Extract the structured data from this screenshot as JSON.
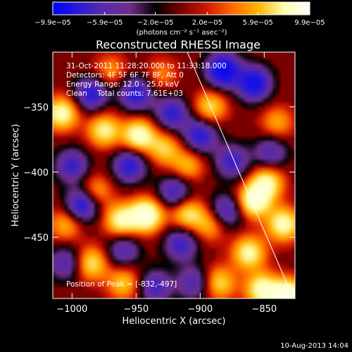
{
  "chart_data": {
    "type": "heatmap",
    "title": "Reconstructed RHESSI Image",
    "xlabel": "Heliocentric X (arcsec)",
    "ylabel": "Heliocentric Y (arcsec)",
    "xlim": [
      -1015,
      -826
    ],
    "ylim": [
      -497,
      -308
    ],
    "x_ticks": [
      -1000,
      -950,
      -900,
      -850
    ],
    "x_tick_labels": [
      "−1000",
      "−950",
      "−900",
      "−850"
    ],
    "y_ticks": [
      -350,
      -400,
      -450
    ],
    "y_tick_labels": [
      "−350",
      "−400",
      "−450"
    ],
    "colorbar": {
      "min": -9.9e-05,
      "max": 9.9e-05,
      "tick_labels": [
        "−9.9e−05",
        "−5.9e−05",
        "−2.0e−05",
        "2.0e−05",
        "5.9e−05",
        "9.9e−05"
      ],
      "tick_values": [
        -9.9e-05,
        -5.9e-05,
        -2e-05,
        2e-05,
        5.9e-05,
        9.9e-05
      ],
      "units_label": "(photons cm⁻² s⁻¹ asec⁻²)",
      "stops": [
        "#0000ff",
        "#2b1ad8",
        "#5a2ba8",
        "#6e2f8a",
        "#000000",
        "#7a0000",
        "#d01800",
        "#ff6a00",
        "#ffb400",
        "#ffffb0",
        "#ffffff"
      ]
    },
    "annotation": {
      "time_range": "31-Oct-2011 11:28:20.000 to 11:33:18.000",
      "detectors": "Detectors: 4F 5F 6F 7F 8F, Att 0",
      "energy_range": "Energy Range: 12.0 - 25.0 keV",
      "method": "Clean",
      "total_counts": "Total counts: 7.61E+03",
      "peak": "Position of Peak = [-832,-497]"
    },
    "peak_position": [
      -832,
      -497
    ],
    "limb_line": [
      [
        -910,
        -308
      ],
      [
        -829,
        -493
      ]
    ],
    "sources": [
      {
        "x": -882,
        "y": -322,
        "amp": -1.0
      },
      {
        "x": -858,
        "y": -332,
        "amp": -0.9
      },
      {
        "x": -992,
        "y": -425,
        "amp": -0.8
      },
      {
        "x": -985,
        "y": -340,
        "amp": -0.7
      },
      {
        "x": -950,
        "y": -340,
        "amp": -0.7
      },
      {
        "x": -922,
        "y": -355,
        "amp": -0.65
      },
      {
        "x": -900,
        "y": -372,
        "amp": -0.7
      },
      {
        "x": -955,
        "y": -395,
        "amp": -0.7
      },
      {
        "x": -920,
        "y": -415,
        "amp": -0.6
      },
      {
        "x": -875,
        "y": -392,
        "amp": -0.6
      },
      {
        "x": -1005,
        "y": -470,
        "amp": -0.5
      },
      {
        "x": -960,
        "y": -460,
        "amp": -0.5
      },
      {
        "x": -915,
        "y": -455,
        "amp": -0.6
      },
      {
        "x": -905,
        "y": -485,
        "amp": -0.5
      },
      {
        "x": -880,
        "y": -430,
        "amp": -0.6
      },
      {
        "x": -845,
        "y": -385,
        "amp": -0.5
      },
      {
        "x": -1000,
        "y": -395,
        "amp": -0.6
      },
      {
        "x": -935,
        "y": -488,
        "amp": -0.55
      },
      {
        "x": -1008,
        "y": -355,
        "amp": 0.75
      },
      {
        "x": -975,
        "y": -368,
        "amp": 0.65
      },
      {
        "x": -948,
        "y": -372,
        "amp": 0.8
      },
      {
        "x": -928,
        "y": -382,
        "amp": 0.5
      },
      {
        "x": -942,
        "y": -433,
        "amp": 0.95
      },
      {
        "x": -962,
        "y": -437,
        "amp": 0.7
      },
      {
        "x": -982,
        "y": -415,
        "amp": 0.45
      },
      {
        "x": -910,
        "y": -432,
        "amp": 0.6
      },
      {
        "x": -892,
        "y": -440,
        "amp": 0.45
      },
      {
        "x": -858,
        "y": -422,
        "amp": 0.85
      },
      {
        "x": -848,
        "y": -408,
        "amp": 0.7
      },
      {
        "x": -835,
        "y": -440,
        "amp": 0.75
      },
      {
        "x": -862,
        "y": -462,
        "amp": 0.7
      },
      {
        "x": -832,
        "y": -495,
        "amp": 1.0
      },
      {
        "x": -852,
        "y": -490,
        "amp": 0.75
      },
      {
        "x": -885,
        "y": -485,
        "amp": 0.55
      },
      {
        "x": -985,
        "y": -470,
        "amp": 0.6
      },
      {
        "x": -1005,
        "y": -440,
        "amp": 0.45
      },
      {
        "x": -960,
        "y": -485,
        "amp": 0.5
      },
      {
        "x": -910,
        "y": -395,
        "amp": 0.45
      },
      {
        "x": -892,
        "y": -350,
        "amp": 0.55
      },
      {
        "x": -840,
        "y": -362,
        "amp": 0.4
      },
      {
        "x": -930,
        "y": -325,
        "amp": 0.3
      },
      {
        "x": -970,
        "y": -322,
        "amp": 0.35
      }
    ]
  },
  "footer": {
    "date": "10-Aug-2013 14:04"
  }
}
